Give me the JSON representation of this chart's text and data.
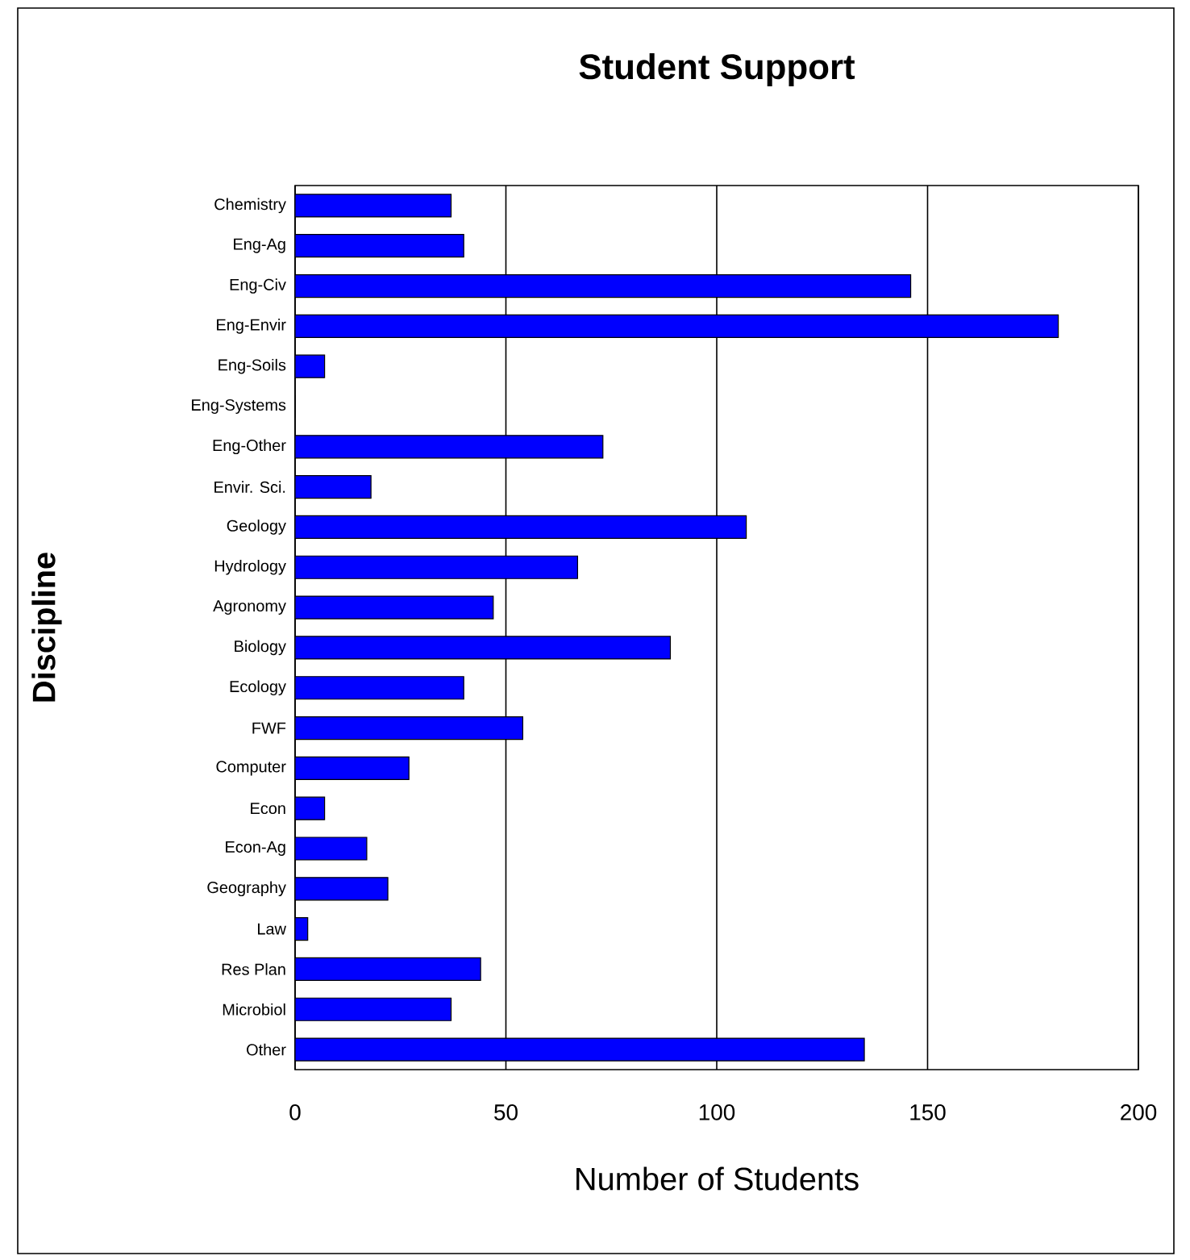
{
  "chart_data": {
    "type": "bar",
    "orientation": "horizontal",
    "title": "Student Support",
    "xlabel": "Number of Students",
    "ylabel": "Discipline",
    "categories": [
      "Chemistry",
      "Eng-Ag",
      "Eng-Civ",
      "Eng-Envir",
      "Eng-Soils",
      "Eng-Systems",
      "Eng-Other",
      "Envir. Sci.",
      "Geology",
      "Hydrology",
      "Agronomy",
      "Biology",
      "Ecology",
      "FWF",
      "Computer",
      "Econ",
      "Econ-Ag",
      "Geography",
      "Law",
      "Res Plan",
      "Microbiol",
      "Other"
    ],
    "values": [
      37,
      40,
      146,
      181,
      7,
      0,
      73,
      18,
      107,
      67,
      47,
      89,
      40,
      54,
      27,
      7,
      17,
      22,
      3,
      44,
      37,
      135
    ],
    "color": "#0000ff",
    "xlim": [
      0,
      200
    ],
    "xticks": [
      0,
      50,
      100,
      150,
      200
    ],
    "grid": "x"
  }
}
